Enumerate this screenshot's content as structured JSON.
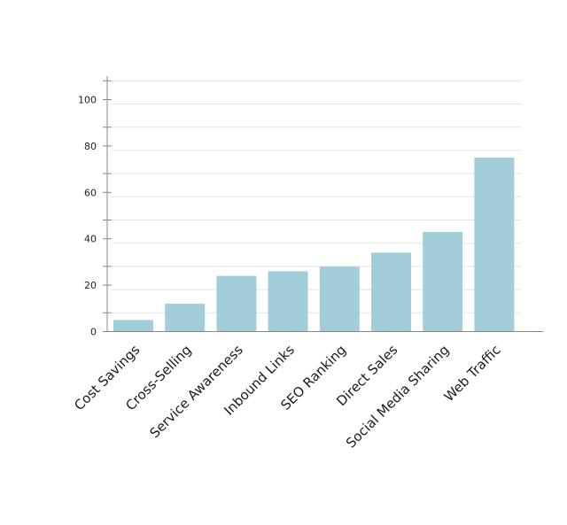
{
  "chart_data": {
    "type": "bar",
    "title": "",
    "xlabel": "",
    "ylabel": "",
    "categories": [
      "Cost Savings",
      "Cross-Selling",
      "Service Awareness",
      "Inbound Links",
      "SEO Ranking",
      "Direct Sales",
      "Social Media Sharing",
      "Web Traffic"
    ],
    "values": [
      5,
      12,
      24,
      26,
      28,
      34,
      43,
      75
    ],
    "ylim": [
      0,
      110
    ],
    "yticks": [
      0,
      20,
      40,
      60,
      80,
      100
    ],
    "ytick_labels": [
      "0",
      "20",
      "40",
      "60",
      "80",
      "100"
    ],
    "grid": true,
    "colors": {
      "bar": "#a2ced9",
      "grid": "#e3e3e3",
      "axis": "#888888"
    }
  }
}
